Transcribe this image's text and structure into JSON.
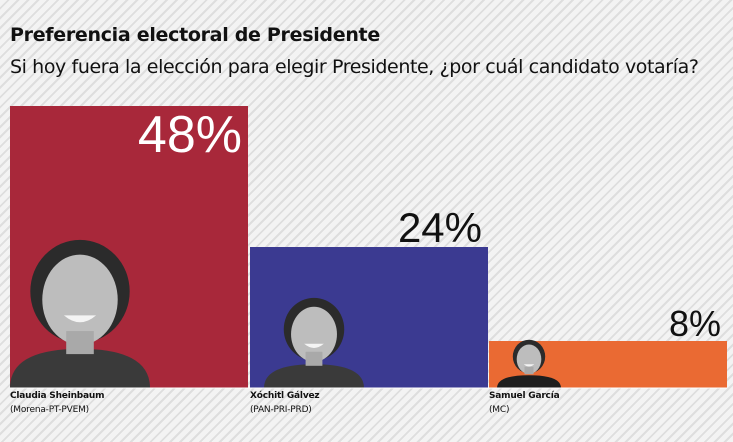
{
  "header": {
    "title": "Preferencia electoral de Presidente",
    "subtitle": "Si hoy fuera la elección para elegir Presidente, ¿por cuál candidato votaría?"
  },
  "candidates": [
    {
      "name": "Claudia Sheinbaum",
      "party": "(Morena-PT-PVEM)",
      "color": "#a8283a",
      "photo_icon": "candidate-photo-woman-smiling"
    },
    {
      "name": "Xóchitl Gálvez",
      "party": "(PAN-PRI-PRD)",
      "color": "#3b3a91",
      "photo_icon": "candidate-photo-woman"
    },
    {
      "name": "Samuel García",
      "party": "(MC)",
      "color": "#ea6a33",
      "photo_icon": "candidate-photo-man"
    }
  ],
  "chart_data": {
    "type": "bar",
    "categories": [
      "Claudia Sheinbaum",
      "Xóchitl Gálvez",
      "Samuel García"
    ],
    "values": [
      48,
      24,
      8
    ],
    "value_labels": [
      "48%",
      "24%",
      "8%"
    ],
    "unit": "%",
    "ylim": [
      0,
      48
    ],
    "grid": false,
    "legend": "none"
  }
}
